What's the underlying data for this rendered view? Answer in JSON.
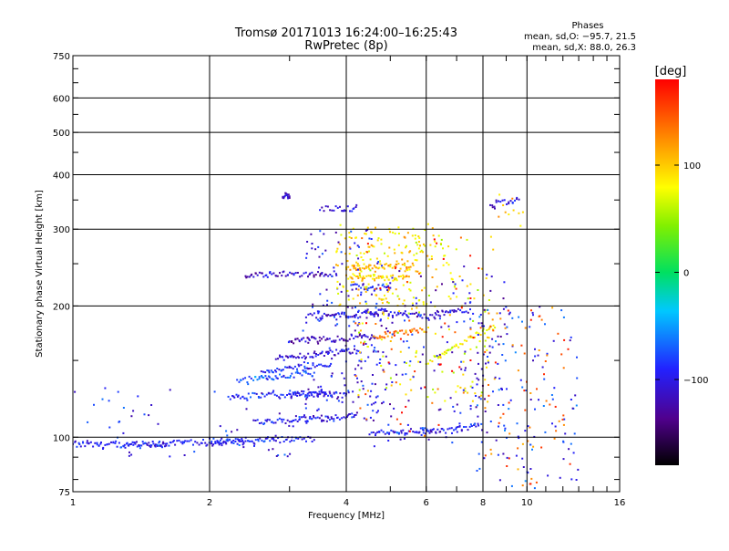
{
  "title": "Tromsø 20171013 16:24:00–16:25:43",
  "subtitle": "RwPretec (8p)",
  "stats": {
    "heading": "Phases",
    "line_o": "mean, sd,O: −95.7, 21.5",
    "line_x": "mean, sd,X:  88.0, 26.3"
  },
  "colorbar": {
    "unit": "[deg]",
    "ticks": [
      {
        "label": "100",
        "value": 100
      },
      {
        "label": "0",
        "value": 0
      },
      {
        "label": "−100",
        "value": -100
      }
    ],
    "range": [
      -180,
      180
    ]
  },
  "chart_data": {
    "type": "scatter",
    "title": "Tromsø 20171013 16:24:00–16:25:43",
    "subtitle": "RwPretec (8p)",
    "xlabel": "Frequency [MHz]",
    "ylabel": "Stationary phase Virtual Height [km]",
    "x_scale": "log",
    "y_scale": "log",
    "xlim": [
      1,
      16
    ],
    "ylim": [
      75,
      750
    ],
    "grid": true,
    "x_ticks": [
      {
        "label": "1",
        "value": 1
      },
      {
        "label": "2",
        "value": 2
      },
      {
        "label": "4",
        "value": 4
      },
      {
        "label": "6",
        "value": 6
      },
      {
        "label": "8",
        "value": 8
      },
      {
        "label": "10",
        "value": 10
      },
      {
        "label": "16",
        "value": 16
      }
    ],
    "y_ticks": [
      {
        "label": "75",
        "value": 75
      },
      {
        "label": "100",
        "value": 100
      },
      {
        "label": "200",
        "value": 200
      },
      {
        "label": "300",
        "value": 300
      },
      {
        "label": "400",
        "value": 400
      },
      {
        "label": "500",
        "value": 500
      },
      {
        "label": "600",
        "value": 600
      },
      {
        "label": "750",
        "value": 750
      }
    ],
    "traces": [
      {
        "f": [
          1.0,
          1.6
        ],
        "h": [
          96,
          96
        ],
        "phase": -100
      },
      {
        "f": [
          1.3,
          2.4
        ],
        "h": [
          96,
          98
        ],
        "phase": -100
      },
      {
        "f": [
          2.0,
          3.4
        ],
        "h": [
          98,
          99
        ],
        "phase": -100
      },
      {
        "f": [
          2.5,
          4.2
        ],
        "h": [
          108,
          112
        ],
        "phase": -100
      },
      {
        "f": [
          2.2,
          3.6
        ],
        "h": [
          124,
          126
        ],
        "phase": -95
      },
      {
        "f": [
          3.0,
          4.0
        ],
        "h": [
          126,
          125
        ],
        "phase": -110
      },
      {
        "f": [
          2.3,
          3.4
        ],
        "h": [
          135,
          140
        ],
        "phase": -80
      },
      {
        "f": [
          2.6,
          3.7
        ],
        "h": [
          142,
          146
        ],
        "phase": -100
      },
      {
        "f": [
          2.8,
          4.3
        ],
        "h": [
          152,
          158
        ],
        "phase": -110
      },
      {
        "f": [
          3.0,
          4.6
        ],
        "h": [
          166,
          170
        ],
        "phase": -120
      },
      {
        "f": [
          3.3,
          4.7
        ],
        "h": [
          190,
          192
        ],
        "phase": -110
      },
      {
        "f": [
          2.4,
          3.8
        ],
        "h": [
          236,
          237
        ],
        "phase": -120
      },
      {
        "f": [
          4.0,
          5.5
        ],
        "h": [
          232,
          232
        ],
        "phase": 100
      },
      {
        "f": [
          4.0,
          5.6
        ],
        "h": [
          245,
          247
        ],
        "phase": 110
      },
      {
        "f": [
          4.1,
          5.0
        ],
        "h": [
          222,
          220
        ],
        "phase": -100
      },
      {
        "f": [
          4.4,
          6.0
        ],
        "h": [
          194,
          190
        ],
        "phase": -110
      },
      {
        "f": [
          4.6,
          6.0
        ],
        "h": [
          170,
          176
        ],
        "phase": 130
      },
      {
        "f": [
          4.5,
          6.2
        ],
        "h": [
          102,
          104
        ],
        "phase": -100
      },
      {
        "f": [
          5.8,
          7.8
        ],
        "h": [
          102,
          106
        ],
        "phase": -100
      },
      {
        "f": [
          6.0,
          7.5
        ],
        "h": [
          190,
          196
        ],
        "phase": -110
      },
      {
        "f": [
          6.0,
          8.5
        ],
        "h": [
          148,
          180
        ],
        "phase": 80
      },
      {
        "f": [
          6.4,
          7.0
        ],
        "h": [
          290,
          210
        ],
        "phase": 80
      },
      {
        "f": [
          2.9,
          3.0
        ],
        "h": [
          358,
          358
        ],
        "phase": -120
      },
      {
        "f": [
          3.5,
          4.2
        ],
        "h": [
          334,
          334
        ],
        "phase": -110
      },
      {
        "f": [
          8.3,
          9.6
        ],
        "h": [
          340,
          350
        ],
        "phase": -110
      }
    ],
    "scatter_regions": [
      {
        "f": [
          3.2,
          4.8
        ],
        "h": [
          108,
          300
        ],
        "phase": -105,
        "n": 160
      },
      {
        "f": [
          3.8,
          6.2
        ],
        "h": [
          200,
          310
        ],
        "phase": 95,
        "n": 150
      },
      {
        "f": [
          4.2,
          8.5
        ],
        "h": [
          120,
          300
        ],
        "phase": 80,
        "n": 160
      },
      {
        "f": [
          4.5,
          9.0
        ],
        "h": [
          95,
          250
        ],
        "phase": -110,
        "n": 150
      },
      {
        "f": [
          7.5,
          13.0
        ],
        "h": [
          76,
          200
        ],
        "phase": -95,
        "n": 130
      },
      {
        "f": [
          8.0,
          12.5
        ],
        "h": [
          76,
          200
        ],
        "phase": 140,
        "n": 70
      },
      {
        "f": [
          1.0,
          3.2
        ],
        "h": [
          90,
          130
        ],
        "phase": -100,
        "n": 60
      },
      {
        "f": [
          4.0,
          8.0
        ],
        "h": [
          100,
          300
        ],
        "phase": 160,
        "n": 60
      },
      {
        "f": [
          8.3,
          10.0
        ],
        "h": [
          300,
          365
        ],
        "phase": 100,
        "n": 10
      }
    ]
  }
}
